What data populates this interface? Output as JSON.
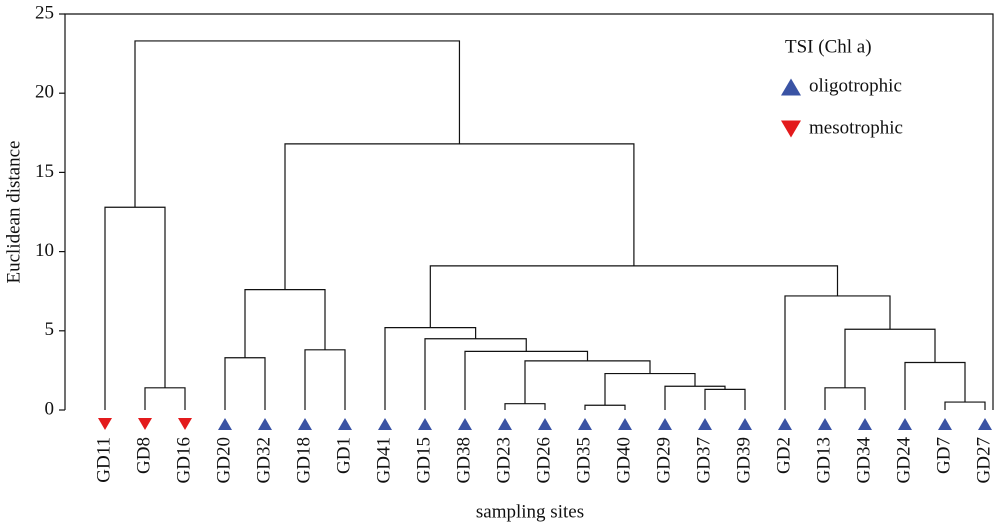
{
  "chart_data": {
    "type": "dendrogram",
    "ylabel": "Euclidean distance",
    "xlabel": "sampling sites",
    "ylim": [
      0,
      25
    ],
    "yticks": [
      0,
      5,
      10,
      15,
      20,
      25
    ],
    "legend_title": "TSI (Chl a)",
    "groups": [
      {
        "name": "oligotrophic",
        "color": "#3a53a4",
        "marker": "up"
      },
      {
        "name": "mesotrophic",
        "color": "#e31a1c",
        "marker": "down"
      }
    ],
    "categories": [
      "GD11",
      "GD8",
      "GD16",
      "GD20",
      "GD32",
      "GD18",
      "GD1",
      "GD41",
      "GD15",
      "GD38",
      "GD23",
      "GD26",
      "GD35",
      "GD40",
      "GD29",
      "GD37",
      "GD39",
      "GD2",
      "GD13",
      "GD34",
      "GD24",
      "GD7",
      "GD27"
    ],
    "classes": [
      1,
      1,
      1,
      0,
      0,
      0,
      0,
      0,
      0,
      0,
      0,
      0,
      0,
      0,
      0,
      0,
      0,
      0,
      0,
      0,
      0,
      0,
      0
    ],
    "merges": [
      {
        "left": 1,
        "right": 2,
        "height": 1.4
      },
      {
        "left": 0,
        "right": 23,
        "height": 12.8
      },
      {
        "left": 3,
        "right": 4,
        "height": 3.3
      },
      {
        "left": 5,
        "right": 6,
        "height": 3.8
      },
      {
        "left": 25,
        "right": 26,
        "height": 7.6
      },
      {
        "left": 10,
        "right": 11,
        "height": 0.4
      },
      {
        "left": 12,
        "right": 13,
        "height": 0.3
      },
      {
        "left": 15,
        "right": 16,
        "height": 1.3
      },
      {
        "left": 14,
        "right": 30,
        "height": 1.5
      },
      {
        "left": 29,
        "right": 31,
        "height": 2.3
      },
      {
        "left": 28,
        "right": 32,
        "height": 3.1
      },
      {
        "left": 9,
        "right": 33,
        "height": 3.7
      },
      {
        "left": 8,
        "right": 34,
        "height": 4.5
      },
      {
        "left": 7,
        "right": 35,
        "height": 5.2
      },
      {
        "left": 18,
        "right": 19,
        "height": 1.4
      },
      {
        "left": 21,
        "right": 22,
        "height": 0.5
      },
      {
        "left": 20,
        "right": 38,
        "height": 3.0
      },
      {
        "left": 37,
        "right": 39,
        "height": 5.1
      },
      {
        "left": 17,
        "right": 40,
        "height": 7.2
      },
      {
        "left": 36,
        "right": 41,
        "height": 9.1
      },
      {
        "left": 27,
        "right": 42,
        "height": 16.8
      },
      {
        "left": 24,
        "right": 43,
        "height": 23.3
      }
    ]
  }
}
